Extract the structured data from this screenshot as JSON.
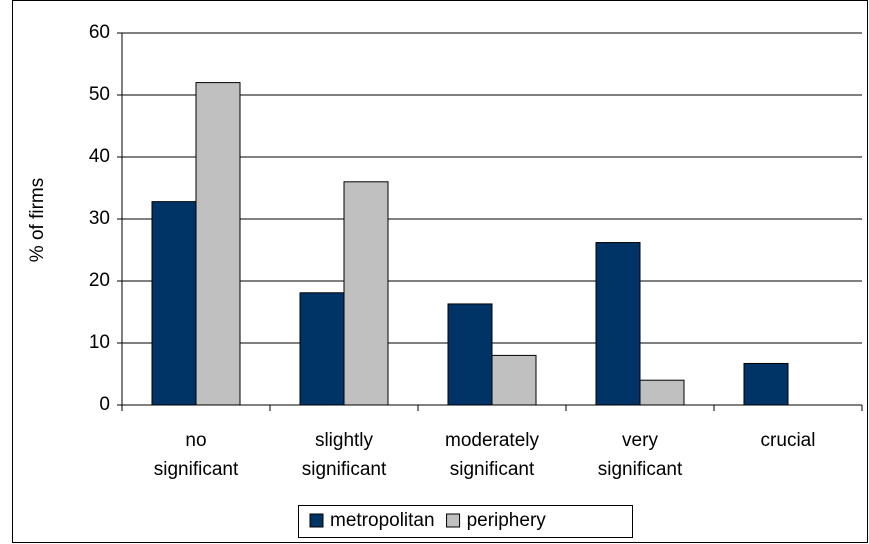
{
  "chart_data": {
    "type": "bar",
    "y_label": "% of firms",
    "categories": [
      "no significant",
      "slightly significant",
      "moderately significant",
      "very significant",
      "crucial"
    ],
    "series": [
      {
        "name": "metropolitan",
        "color": "#003366",
        "values": [
          32.8,
          18.1,
          16.3,
          26.2,
          6.7
        ]
      },
      {
        "name": "periphery",
        "color": "#c0c0c0",
        "values": [
          52,
          36,
          8,
          4,
          0
        ]
      }
    ],
    "ylim": [
      0,
      60
    ],
    "yticks": [
      0,
      10,
      20,
      30,
      40,
      50,
      60
    ],
    "grid": true,
    "legend": "bottom"
  }
}
